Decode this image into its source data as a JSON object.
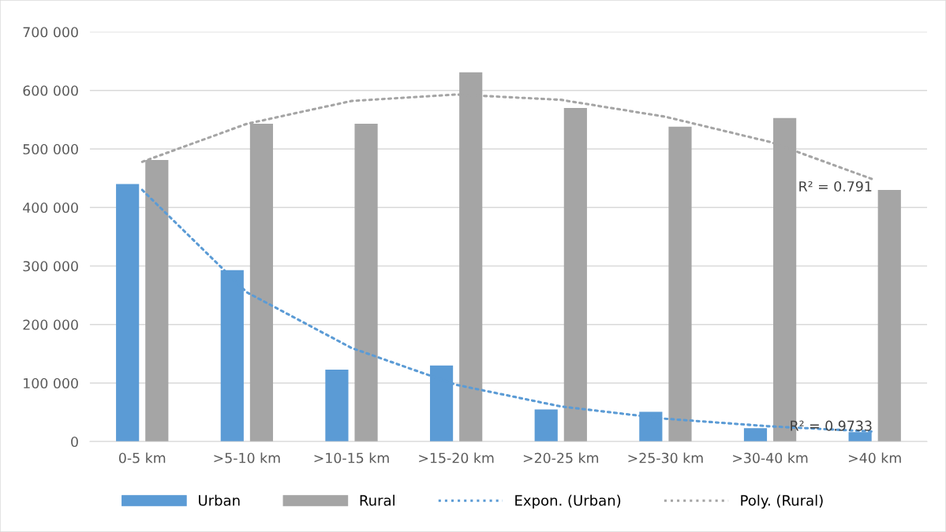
{
  "chart_data": {
    "type": "bar",
    "categories": [
      "0-5 km",
      ">5-10 km",
      ">10-15 km",
      ">15-20 km",
      ">20-25 km",
      ">25-30 km",
      ">30-40 km",
      ">40 km"
    ],
    "series": [
      {
        "name": "Urban",
        "color": "#5b9bd5",
        "values": [
          440000,
          293000,
          123000,
          130000,
          55000,
          51000,
          23000,
          16000
        ]
      },
      {
        "name": "Rural",
        "color": "#a5a5a5",
        "values": [
          481000,
          543000,
          543000,
          631000,
          570000,
          538000,
          553000,
          430000
        ]
      },
      {
        "name": "Expon. (Urban)",
        "type": "line",
        "line_style": "dotted",
        "color": "#5b9bd5",
        "values": [
          430000,
          255000,
          160000,
          97000,
          60000,
          39000,
          26000,
          17000
        ]
      },
      {
        "name": "Poly. (Rural)",
        "type": "line",
        "line_style": "dotted",
        "color": "#a5a5a5",
        "values": [
          478000,
          543000,
          582000,
          593000,
          584000,
          555000,
          512000,
          447000
        ]
      }
    ],
    "ylim": [
      0,
      700000
    ],
    "yticks": [
      {
        "value": 0,
        "label": "0"
      },
      {
        "value": 100000,
        "label": "100 000"
      },
      {
        "value": 200000,
        "label": "200 000"
      },
      {
        "value": 300000,
        "label": "300 000"
      },
      {
        "value": 400000,
        "label": "400 000"
      },
      {
        "value": 500000,
        "label": "500 000"
      },
      {
        "value": 600000,
        "label": "600 000"
      },
      {
        "value": 700000,
        "label": "700 000"
      }
    ],
    "grid": "y",
    "legend": "bottom",
    "annotations": [
      {
        "text": "R² = 0.9733",
        "x": ">40 km",
        "y": 25000
      },
      {
        "text": "R² = 0.791",
        "x": ">40 km",
        "y": 434000
      }
    ]
  }
}
